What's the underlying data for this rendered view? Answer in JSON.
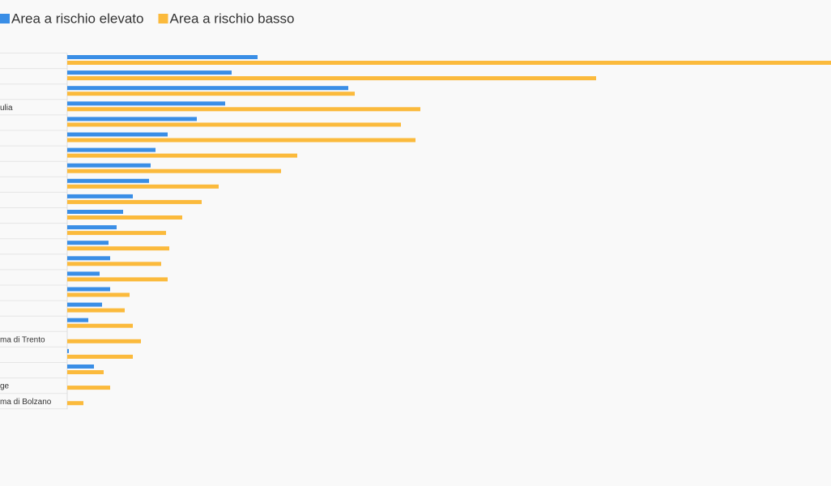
{
  "chart_data": {
    "type": "bar",
    "orientation": "horizontal",
    "categories": [
      null,
      null,
      null,
      "ulia",
      null,
      null,
      null,
      null,
      null,
      null,
      null,
      null,
      null,
      null,
      null,
      null,
      null,
      null,
      "ma di Trento",
      null,
      null,
      "ge",
      "ma di Bolzano"
    ],
    "series": [
      {
        "name": "Area a rischio elevato",
        "color": "#3a8ee6",
        "values": [
          235,
          203,
          347,
          195,
          160,
          124,
          109,
          103,
          101,
          81,
          69,
          61,
          51,
          53,
          40,
          53,
          43,
          26,
          0,
          2,
          33,
          0,
          0
        ]
      },
      {
        "name": "Area a rischio basso",
        "color": "#fbba3c",
        "values": [
          943,
          653,
          355,
          436,
          412,
          430,
          284,
          264,
          187,
          166,
          142,
          122,
          126,
          116,
          124,
          77,
          71,
          81,
          91,
          81,
          45,
          53,
          20
        ]
      }
    ],
    "xlim": [
      0,
      943
    ]
  }
}
